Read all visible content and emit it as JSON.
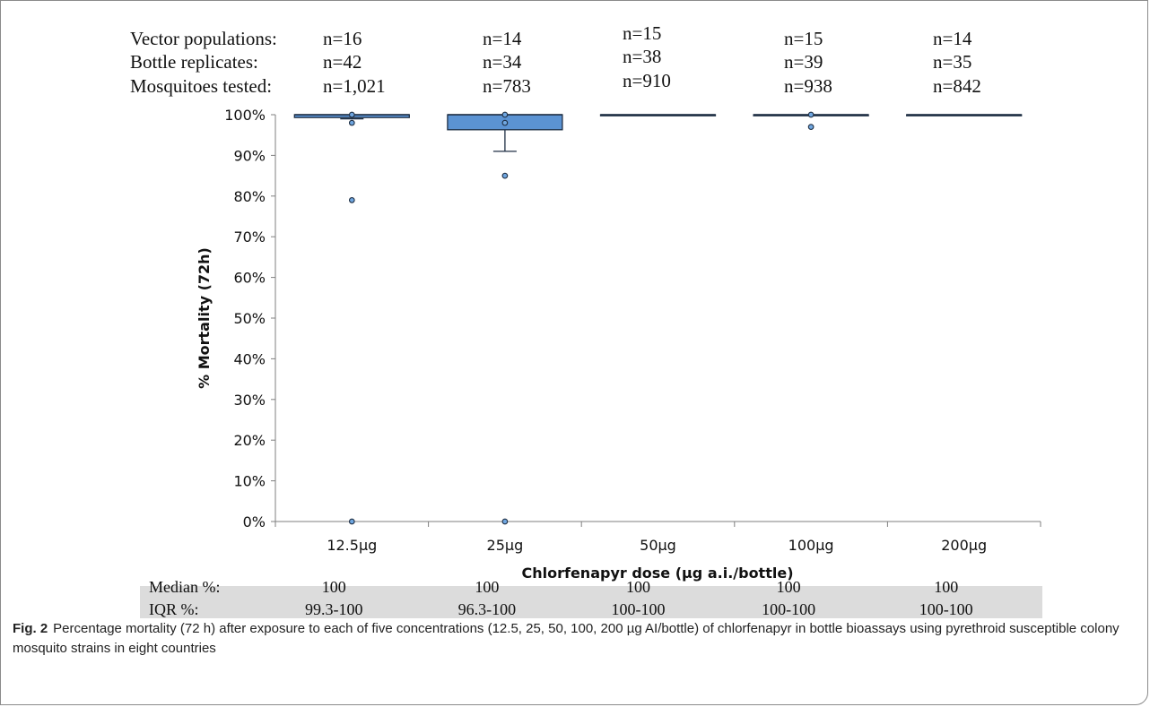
{
  "chart_data": {
    "type": "box",
    "xlabel": "Chlorfenapyr dose (µg a.i./bottle)",
    "ylabel": "% Mortality (72h)",
    "ylim": [
      0,
      100
    ],
    "ytick_step": 10,
    "ytick_suffix": "%",
    "grid": false,
    "box_color": "#5b93d3",
    "box_stroke": "#1f2f44",
    "categories": [
      "12.5µg",
      "25µg",
      "50µg",
      "100µg",
      "200µg"
    ],
    "boxes": [
      {
        "min": 99,
        "q1": 99.3,
        "median": 100,
        "q3": 100,
        "max": 100,
        "outliers": [
          100,
          98,
          79,
          0
        ]
      },
      {
        "min": 91,
        "q1": 96.3,
        "median": 100,
        "q3": 100,
        "max": 100,
        "outliers": [
          100,
          98,
          85,
          0
        ]
      },
      {
        "min": 100,
        "q1": 100,
        "median": 100,
        "q3": 100,
        "max": 100,
        "outliers": []
      },
      {
        "min": 100,
        "q1": 100,
        "median": 100,
        "q3": 100,
        "max": 100,
        "outliers": [
          100,
          97
        ]
      },
      {
        "min": 100,
        "q1": 100,
        "median": 100,
        "q3": 100,
        "max": 100,
        "outliers": []
      }
    ]
  },
  "header_rows": [
    {
      "label": "Vector populations:",
      "values": [
        "n=16",
        "n=14",
        "n=15",
        "n=15",
        "n=14"
      ]
    },
    {
      "label": "Bottle replicates:",
      "values": [
        "n=42",
        "n=34",
        "n=38",
        "n=39",
        "n=35"
      ]
    },
    {
      "label": "Mosquitoes tested:",
      "values": [
        "n=1,021",
        "n=783",
        "n=910",
        "n=938",
        "n=842"
      ]
    }
  ],
  "footer_rows": [
    {
      "label": "Median %:",
      "values": [
        "100",
        "100",
        "100",
        "100",
        "100"
      ]
    },
    {
      "label": "IQR %:",
      "values": [
        "99.3-100",
        "96.3-100",
        "100-100",
        "100-100",
        "100-100"
      ]
    }
  ],
  "footer_bg": "#dcdcdc",
  "caption": {
    "label": "Fig. 2",
    "text": "Percentage mortality (72 h) after exposure to each of five concentrations (12.5, 25, 50, 100, 200 µg AI/bottle) of chlorfenapyr in bottle bioassays using pyrethroid susceptible colony mosquito strains in eight countries"
  }
}
